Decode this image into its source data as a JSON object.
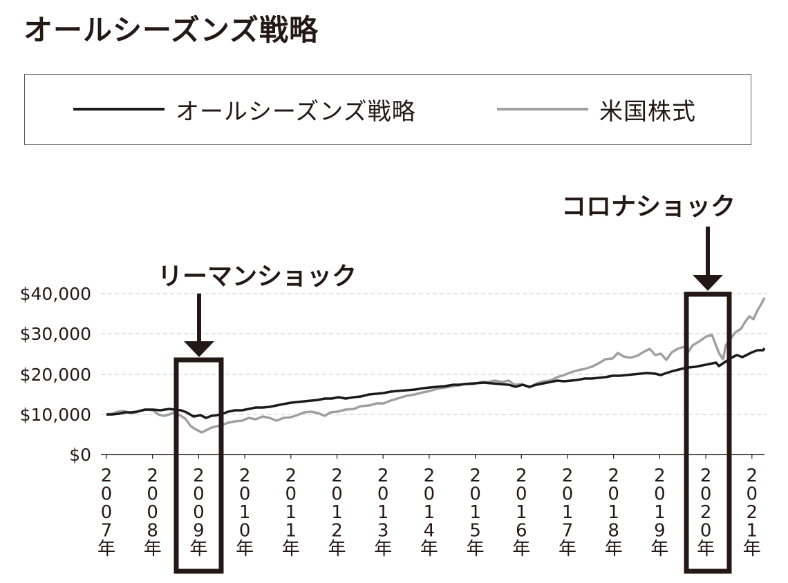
{
  "title": "オールシーズンズ戦略",
  "legend": {
    "items": [
      {
        "label": "オールシーズンズ戦略",
        "color": "#1a1a1a"
      },
      {
        "label": "米国株式",
        "color": "#a0a0a0"
      }
    ]
  },
  "annotations": [
    {
      "label": "リーマンショック",
      "year": "2009年"
    },
    {
      "label": "コロナショック",
      "year": "2020年"
    }
  ],
  "y_axis": {
    "ticks": [
      "$0",
      "$10,000",
      "$20,000",
      "$30,000",
      "$40,000"
    ]
  },
  "x_axis": {
    "ticks": [
      "2007年",
      "2008年",
      "2009年",
      "2010年",
      "2011年",
      "2012年",
      "2013年",
      "2014年",
      "2015年",
      "2016年",
      "2017年",
      "2018年",
      "2019年",
      "2020年",
      "2021年"
    ]
  },
  "chart_data": {
    "type": "line",
    "title": "オールシーズンズ戦略",
    "xlabel": "",
    "ylabel": "",
    "ylim": [
      0,
      40000
    ],
    "grid": true,
    "legend_position": "top (boxed)",
    "categories": [
      "2007",
      "2007.5",
      "2008",
      "2008.5",
      "2009",
      "2009.5",
      "2010",
      "2010.5",
      "2011",
      "2011.5",
      "2012",
      "2012.5",
      "2013",
      "2013.5",
      "2014",
      "2014.5",
      "2015",
      "2015.5",
      "2016",
      "2016.5",
      "2017",
      "2017.5",
      "2018",
      "2018.5",
      "2019",
      "2019.5",
      "2020",
      "2020.25",
      "2020.5",
      "2021",
      "2021.3"
    ],
    "series": [
      {
        "name": "オールシーズンズ戦略",
        "color": "#1a1a1a",
        "values": [
          10000,
          10500,
          11000,
          11200,
          10500,
          9200,
          10300,
          11000,
          11700,
          12400,
          13000,
          13500,
          14100,
          14600,
          15300,
          16000,
          16800,
          17300,
          17200,
          16700,
          17800,
          18200,
          19200,
          19800,
          19500,
          20500,
          22000,
          22700,
          21700,
          25000,
          26300
        ]
      },
      {
        "name": "米国株式",
        "color": "#a0a0a0",
        "values": [
          10000,
          10500,
          10800,
          10000,
          9300,
          5800,
          7800,
          8500,
          9100,
          9300,
          10300,
          11000,
          11800,
          13100,
          15000,
          16000,
          17500,
          18000,
          18000,
          17200,
          19000,
          21000,
          23500,
          24500,
          24000,
          26000,
          28500,
          29300,
          23500,
          30000,
          39400
        ]
      }
    ]
  },
  "style": {
    "strategy_color": "#1a1a1a",
    "stock_color": "#a0a0a0",
    "box_color": "#231815",
    "grid_color": "#cccccc"
  }
}
